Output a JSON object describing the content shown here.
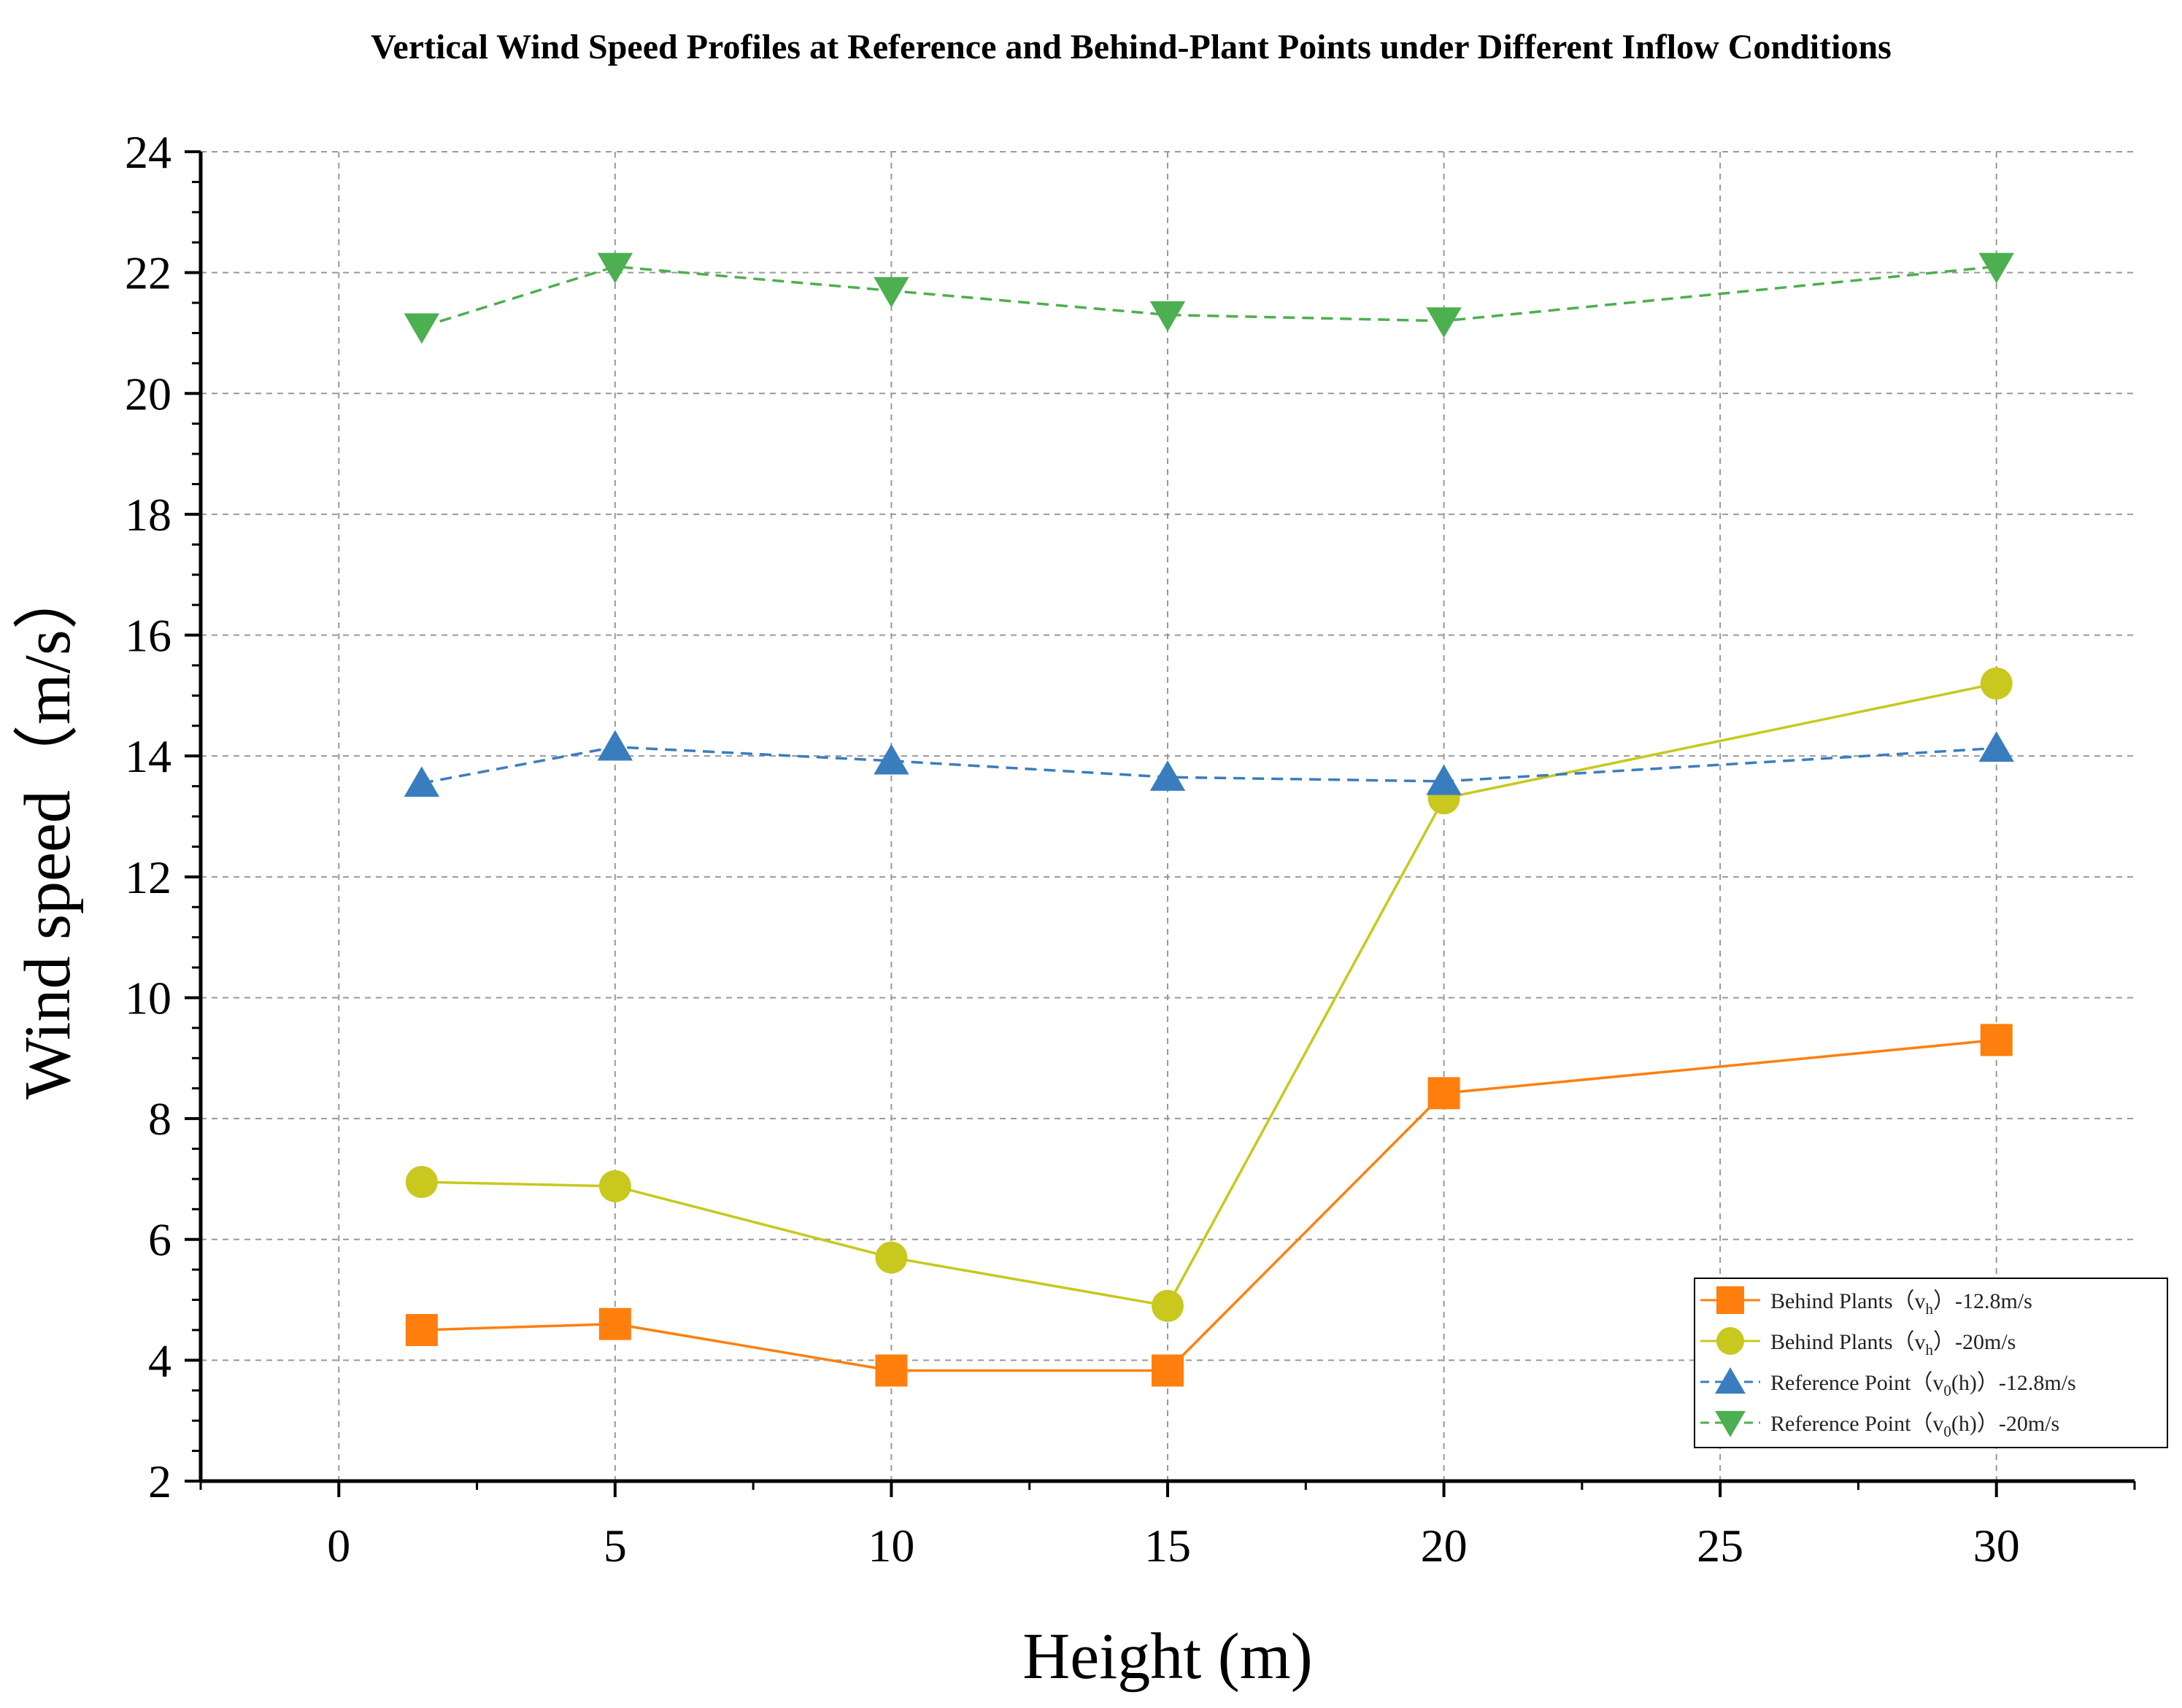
{
  "chart_data": {
    "type": "line",
    "title": "Vertical Wind Speed Profiles at Reference and Behind-Plant Points under Different Inflow Conditions",
    "xlabel": "Height (m)",
    "ylabel": "Wind speed（m/s）",
    "xlim": [
      -2.5,
      32.5
    ],
    "ylim": [
      2,
      24
    ],
    "xticks": [
      0,
      5,
      10,
      15,
      20,
      25,
      30
    ],
    "yticks": [
      2,
      4,
      6,
      8,
      10,
      12,
      14,
      16,
      18,
      20,
      22,
      24
    ],
    "grid": true,
    "legend_position": "bottom-right",
    "x": [
      1.5,
      5,
      10,
      15,
      20,
      30
    ],
    "series": [
      {
        "name": "Behind Plants（vh）-12.8m/s",
        "legend_parts": [
          "Behind Plants（v",
          "h",
          "）-12.8m/s"
        ],
        "values": [
          4.5,
          4.6,
          3.83,
          3.83,
          8.42,
          9.3
        ],
        "color": "#ff7f0e",
        "marker": "square",
        "line": "solid"
      },
      {
        "name": "Behind Plants（vh）-20m/s",
        "legend_parts": [
          "Behind Plants（v",
          "h",
          "）-20m/s"
        ],
        "values": [
          6.95,
          6.88,
          5.7,
          4.9,
          13.3,
          15.2
        ],
        "color": "#c8c81e",
        "marker": "circle",
        "line": "solid"
      },
      {
        "name": "Reference Point（v0(h)）-12.8m/s",
        "legend_parts": [
          "Reference Point（v",
          "0",
          "(h)）-12.8m/s"
        ],
        "values": [
          13.55,
          14.15,
          13.92,
          13.65,
          13.58,
          14.13
        ],
        "color": "#3a7dbf",
        "marker": "triangle-up",
        "line": "dashed"
      },
      {
        "name": "Reference Point（v0(h)）-20m/s",
        "legend_parts": [
          "Reference Point（v",
          "0",
          "(h)）-20m/s"
        ],
        "values": [
          21.1,
          22.1,
          21.7,
          21.3,
          21.2,
          22.1
        ],
        "color": "#4caf50",
        "marker": "triangle-down",
        "line": "dashed"
      }
    ]
  }
}
